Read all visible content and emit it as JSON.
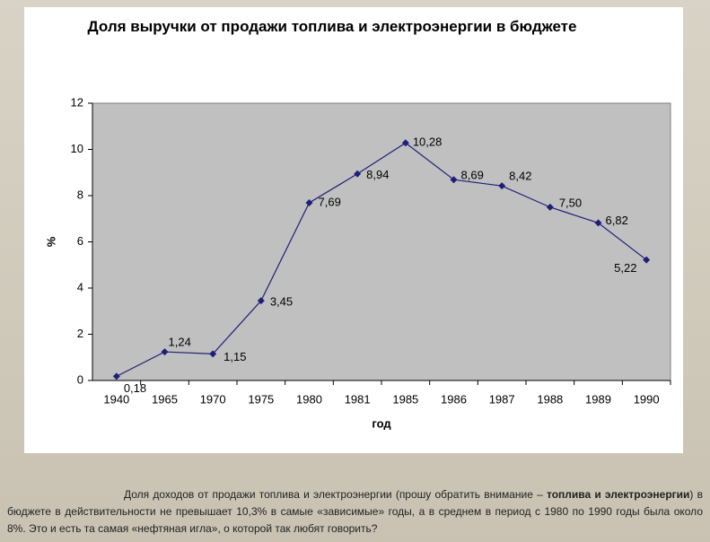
{
  "chart_data": {
    "type": "line",
    "title": "Доля выручки от продажи топлива и электроэнергии в бюджете",
    "x_label": "год",
    "y_label": "%",
    "categories": [
      "1940",
      "1965",
      "1970",
      "1975",
      "1980",
      "1981",
      "1985",
      "1986",
      "1987",
      "1988",
      "1989",
      "1990"
    ],
    "series": [
      {
        "name": "Доля выручки",
        "color": "#1f1f7a",
        "values": [
          0.18,
          1.24,
          1.15,
          3.45,
          7.69,
          8.94,
          10.28,
          8.69,
          8.42,
          7.5,
          6.82,
          5.22
        ],
        "value_labels": [
          "0,18",
          "1,24",
          "1,15",
          "3,45",
          "7,69",
          "8,94",
          "10,28",
          "8,69",
          "8,42",
          "7,50",
          "6,82",
          "5,22"
        ]
      }
    ],
    "ylim": [
      0,
      12
    ],
    "yticks": [
      0,
      2,
      4,
      6,
      8,
      10,
      12
    ],
    "plot_background": "#c0c0c0"
  },
  "caption": {
    "parts": [
      "Доля доходов от продажи топлива и электроэнергии (прошу обратить внимание – ",
      "топлива и электроэнергии",
      ") в бюджете в действительности не превышает 10,3% в самые «зависимые» годы, а в среднем в период с 1980 по 1990 годы была около 8%. Это и есть та самая «нефтяная игла», о которой так любят говорить?"
    ]
  }
}
